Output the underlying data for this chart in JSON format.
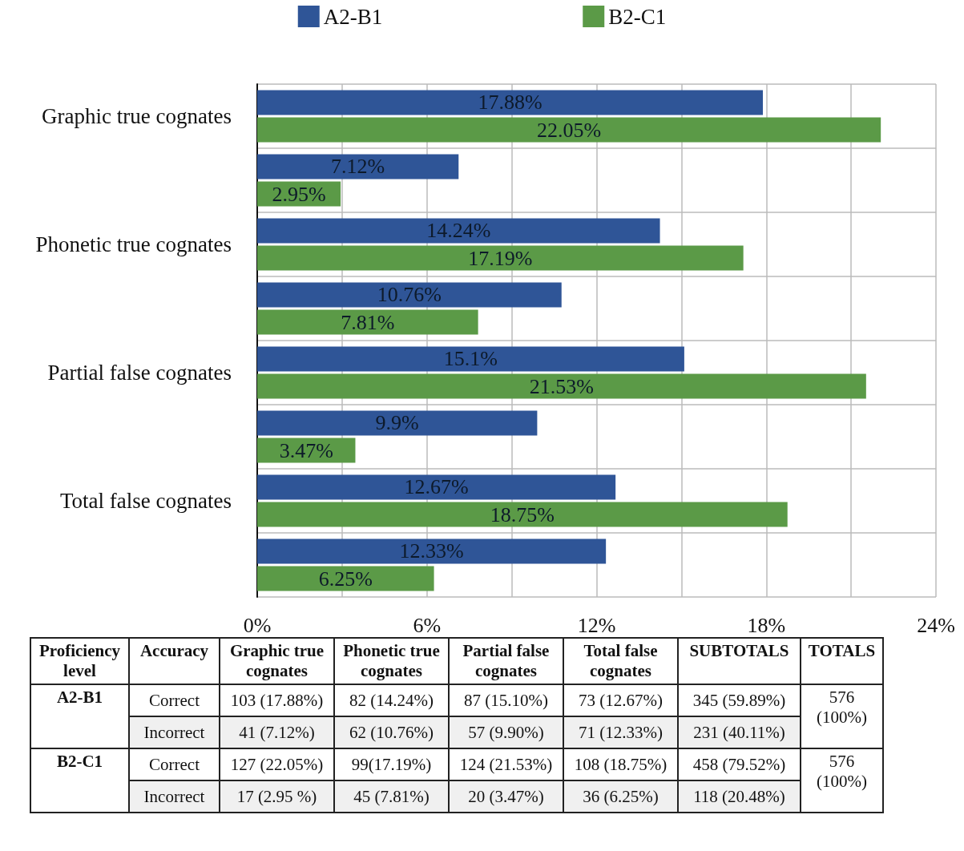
{
  "chart_data": [
    {
      "type": "bar",
      "orientation": "horizontal",
      "categories": [
        "Graphic true cognates",
        null,
        "Phonetic true cognates",
        null,
        "Partial false cognates",
        null,
        "Total false cognates",
        null
      ],
      "series": [
        {
          "name": "A2-B1",
          "color": "#2f5597",
          "values": [
            17.88,
            7.12,
            14.24,
            10.76,
            15.1,
            9.9,
            12.67,
            12.33
          ],
          "value_labels": [
            "17.88%",
            "7.12%",
            "14.24%",
            "10.76%",
            "15.1%",
            "9.9%",
            "12.67%",
            "12.33%"
          ]
        },
        {
          "name": "B2-C1",
          "color": "#5b9a47",
          "values": [
            22.05,
            2.95,
            17.19,
            7.81,
            21.53,
            3.47,
            18.75,
            6.25
          ],
          "value_labels": [
            "22.05%",
            "2.95%",
            "17.19%",
            "7.81%",
            "21.53%",
            "3.47%",
            "18.75%",
            "6.25%"
          ]
        }
      ],
      "xlim": [
        0,
        24
      ],
      "xticks": [
        {
          "value": 0,
          "label": "0%"
        },
        {
          "value": 3,
          "label": null
        },
        {
          "value": 6,
          "label": "6%"
        },
        {
          "value": 9,
          "label": null
        },
        {
          "value": 12,
          "label": "12%"
        },
        {
          "value": 15,
          "label": null
        },
        {
          "value": 18,
          "label": "18%"
        },
        {
          "value": 21,
          "label": null
        },
        {
          "value": 24,
          "label": "24%"
        }
      ],
      "grid": true,
      "legend": "top"
    },
    {
      "type": "other",
      "categories": [
        "Proficiency level",
        "Accuracy",
        "Graphic true cognates",
        "Phonetic true cognates",
        "Partial false cognates",
        "Total false cognates",
        "SUBTOTALS",
        "TOTALS"
      ],
      "cell_labels": [
        [
          "A2-B1",
          "Correct",
          "103 (17.88%)",
          "82 (14.24%)",
          "87 (15.10%)",
          "73 (12.67%)",
          "345 (59.89%)",
          "576 (100%)"
        ],
        [
          null,
          "Incorrect",
          "41 (7.12%)",
          "62 (10.76%)",
          "57 (9.90%)",
          "71 (12.33%)",
          "231 (40.11%)",
          null
        ],
        [
          "B2-C1",
          "Correct",
          "127 (22.05%)",
          "99(17.19%)",
          "124 (21.53%)",
          "108 (18.75%)",
          "458 (79.52%)",
          "576 (100%)"
        ],
        [
          null,
          "Incorrect",
          "17 (2.95 %)",
          "45 (7.81%)",
          "20 (3.47%)",
          "36 (6.25%)",
          "118 (20.48%)",
          null
        ]
      ]
    }
  ]
}
